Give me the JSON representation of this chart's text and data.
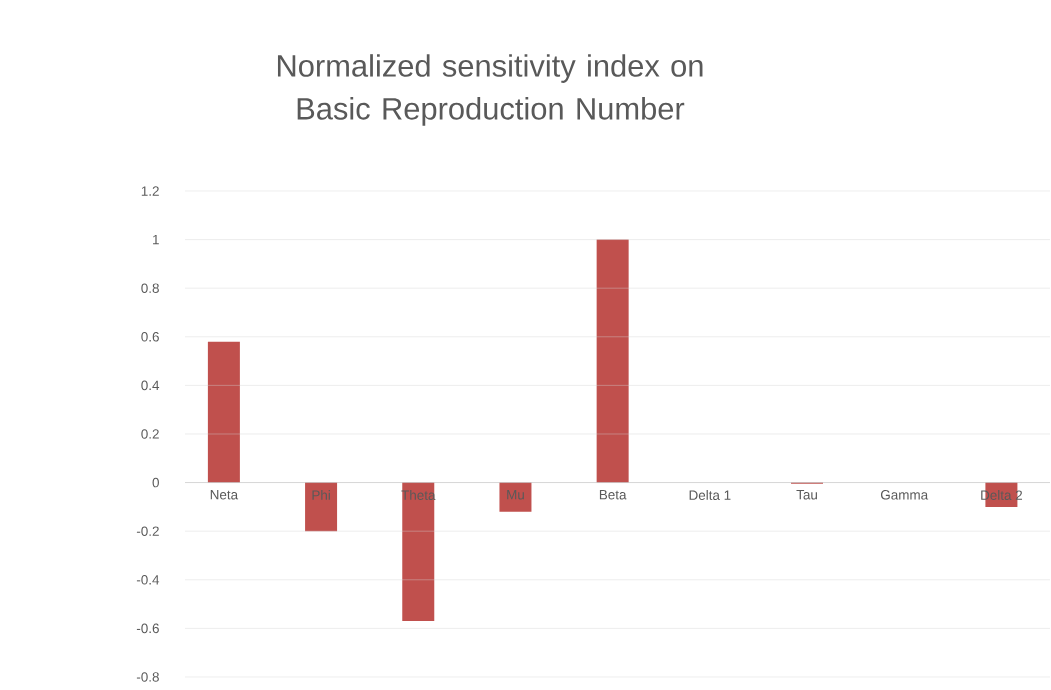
{
  "chart_data": {
    "type": "bar",
    "title": "Normalized sensitivity index on Basic Reproduction Number",
    "categories": [
      "Neta",
      "Phi",
      "Theta",
      "Mu",
      "Beta",
      "Delta 1",
      "Tau",
      "Gamma",
      "Delta 2"
    ],
    "values": [
      0.58,
      -0.2,
      -0.57,
      -0.12,
      1,
      0,
      -0.005,
      0,
      -0.1
    ],
    "color": "#c0504d",
    "ylim": [
      -0.8,
      1.2
    ],
    "yticks": [
      -0.8,
      -0.6,
      -0.4,
      -0.2,
      0,
      0.2,
      0.4,
      0.6,
      0.8,
      1,
      1.2
    ],
    "grid": "y"
  }
}
